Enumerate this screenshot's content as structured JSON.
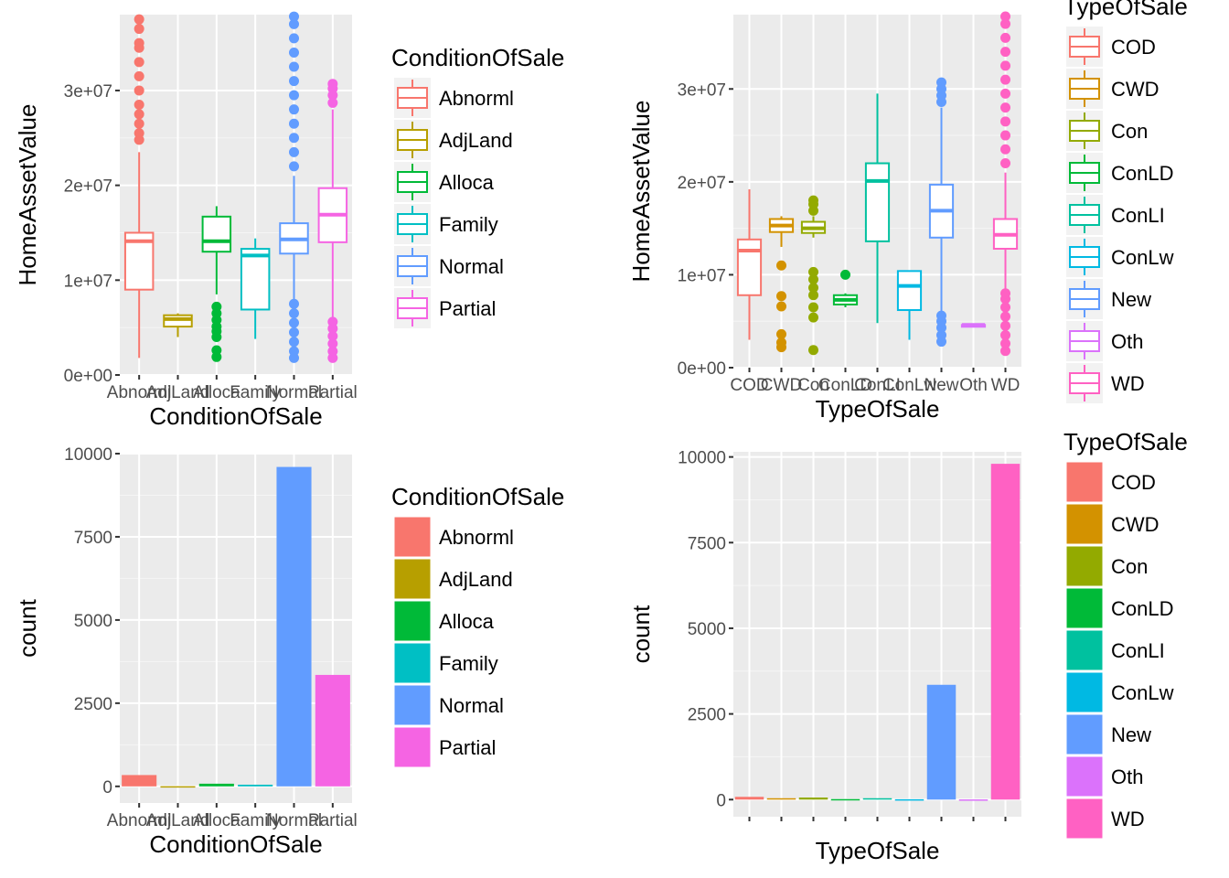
{
  "chart_data": [
    {
      "id": "p1",
      "type": "boxplot",
      "xlabel": "ConditionOfSale",
      "ylabel": "HomeAssetValue",
      "categories": [
        "Abnorml",
        "AdjLand",
        "Alloca",
        "Family",
        "Normal",
        "Partial"
      ],
      "ylim": [
        0,
        38000000
      ],
      "yticks": [
        0,
        10000000,
        20000000,
        30000000
      ],
      "ytick_labels": [
        "0e+00",
        "1e+07",
        "2e+07",
        "3e+07"
      ],
      "colors": [
        "#F8766D",
        "#B79F00",
        "#00BA38",
        "#00BFC4",
        "#619CFF",
        "#F564E3"
      ],
      "boxes": [
        {
          "lw": 1800000,
          "q1": 9000000,
          "med": 14100000,
          "q3": 15000000,
          "uw": 23500000,
          "outliers": [
            24800000,
            25500000,
            26500000,
            27500000,
            28500000,
            30000000,
            31500000,
            33000000,
            34500000,
            35000000,
            36500000,
            37500000
          ]
        },
        {
          "lw": 4000000,
          "q1": 5100000,
          "med": 5900000,
          "q3": 6300000,
          "uw": 6500000,
          "outliers": []
        },
        {
          "lw": 8500000,
          "q1": 13000000,
          "med": 14100000,
          "q3": 16700000,
          "uw": 17800000,
          "outliers": [
            1900000,
            2600000,
            4000000,
            4600000,
            5100000,
            5800000,
            6500000,
            7200000
          ]
        },
        {
          "lw": 3800000,
          "q1": 6900000,
          "med": 12600000,
          "q3": 13300000,
          "uw": 14400000,
          "outliers": []
        },
        {
          "lw": 8000000,
          "q1": 12800000,
          "med": 14300000,
          "q3": 16000000,
          "uw": 21000000,
          "outliers": [
            1800000,
            2500000,
            3500000,
            4500000,
            5500000,
            6500000,
            7500000,
            22000000,
            23500000,
            25000000,
            26500000,
            28000000,
            29500000,
            31000000,
            32500000,
            34000000,
            35500000,
            37000000,
            37800000
          ]
        },
        {
          "lw": 6000000,
          "q1": 14000000,
          "med": 16900000,
          "q3": 19700000,
          "uw": 28000000,
          "outliers": [
            1800000,
            2500000,
            3300000,
            4100000,
            4900000,
            5600000,
            28700000,
            29500000,
            30200000,
            30700000
          ]
        }
      ],
      "legend": {
        "title": "ConditionOfSale",
        "labels": [
          "Abnorml",
          "AdjLand",
          "Alloca",
          "Family",
          "Normal",
          "Partial"
        ]
      }
    },
    {
      "id": "p2",
      "type": "boxplot",
      "xlabel": "TypeOfSale",
      "ylabel": "HomeAssetValue",
      "categories": [
        "COD",
        "CWD",
        "Con",
        "ConLD",
        "ConLI",
        "ConLw",
        "New",
        "Oth",
        "WD"
      ],
      "ylim": [
        0,
        38000000
      ],
      "yticks": [
        0,
        10000000,
        20000000,
        30000000
      ],
      "ytick_labels": [
        "0e+00",
        "1e+07",
        "2e+07",
        "3e+07"
      ],
      "colors": [
        "#F8766D",
        "#D39200",
        "#93AA00",
        "#00BA38",
        "#00C19F",
        "#00B9E3",
        "#619CFF",
        "#DB72FB",
        "#FF61C3"
      ],
      "boxes": [
        {
          "lw": 3000000,
          "q1": 7800000,
          "med": 12600000,
          "q3": 13800000,
          "uw": 19200000,
          "outliers": []
        },
        {
          "lw": 13000000,
          "q1": 14600000,
          "med": 15300000,
          "q3": 16000000,
          "uw": 16300000,
          "outliers": [
            2200000,
            2700000,
            3600000,
            6600000,
            7700000,
            11000000
          ]
        },
        {
          "lw": 14000000,
          "q1": 14500000,
          "med": 15000000,
          "q3": 15700000,
          "uw": 16300000,
          "outliers": [
            1900000,
            5400000,
            6500000,
            7800000,
            8600000,
            9500000,
            10300000,
            16900000,
            17600000,
            18000000
          ]
        },
        {
          "lw": 6500000,
          "q1": 6800000,
          "med": 7300000,
          "q3": 7800000,
          "uw": 8000000,
          "outliers": [
            10000000
          ]
        },
        {
          "lw": 4800000,
          "q1": 13600000,
          "med": 20100000,
          "q3": 22000000,
          "uw": 29500000,
          "outliers": []
        },
        {
          "lw": 3000000,
          "q1": 6200000,
          "med": 8800000,
          "q3": 10400000,
          "uw": 10400000,
          "outliers": []
        },
        {
          "lw": 6000000,
          "q1": 14000000,
          "med": 16900000,
          "q3": 19700000,
          "uw": 28000000,
          "outliers": [
            2800000,
            3500000,
            4300000,
            5000000,
            5600000,
            28600000,
            29300000,
            30000000,
            30700000
          ]
        },
        {
          "lw": 4600000,
          "q1": 4600000,
          "med": 4600000,
          "q3": 4600000,
          "uw": 4600000,
          "outliers": []
        },
        {
          "lw": 8000000,
          "q1": 12800000,
          "med": 14300000,
          "q3": 16000000,
          "uw": 21000000,
          "outliers": [
            1800000,
            2600000,
            3500000,
            4500000,
            5500000,
            6500000,
            7400000,
            8000000,
            22000000,
            23500000,
            25000000,
            26500000,
            28000000,
            29500000,
            31000000,
            32500000,
            34000000,
            35500000,
            37000000,
            37800000
          ]
        }
      ],
      "legend": {
        "title": "TypeOfSale",
        "labels": [
          "COD",
          "CWD",
          "Con",
          "ConLD",
          "ConLI",
          "ConLw",
          "New",
          "Oth",
          "WD"
        ]
      }
    },
    {
      "id": "p3",
      "type": "bar",
      "xlabel": "ConditionOfSale",
      "ylabel": "count",
      "categories": [
        "Abnorml",
        "AdjLand",
        "Alloca",
        "Family",
        "Normal",
        "Partial"
      ],
      "values": [
        340,
        5,
        80,
        50,
        9600,
        3350
      ],
      "ylim": [
        -500,
        10000
      ],
      "yticks": [
        0,
        2500,
        5000,
        7500,
        10000
      ],
      "ytick_labels": [
        "0",
        "2500",
        "5000",
        "7500",
        "10000"
      ],
      "colors": [
        "#F8766D",
        "#B79F00",
        "#00BA38",
        "#00BFC4",
        "#619CFF",
        "#F564E3"
      ],
      "legend": {
        "title": "ConditionOfSale",
        "labels": [
          "Abnorml",
          "AdjLand",
          "Alloca",
          "Family",
          "Normal",
          "Partial"
        ]
      }
    },
    {
      "id": "p4",
      "type": "bar",
      "xlabel": "TypeOfSale",
      "ylabel": "count",
      "categories": [
        "COD",
        "CWD",
        "Con",
        "ConLD",
        "ConLI",
        "ConLw",
        "New",
        "Oth",
        "WD"
      ],
      "show_category_labels": false,
      "values": [
        80,
        40,
        60,
        15,
        40,
        10,
        3350,
        5,
        9800
      ],
      "ylim": [
        -500,
        10150
      ],
      "yticks": [
        0,
        2500,
        5000,
        7500,
        10000
      ],
      "ytick_labels": [
        "0",
        "2500",
        "5000",
        "7500",
        "10000"
      ],
      "colors": [
        "#F8766D",
        "#D39200",
        "#93AA00",
        "#00BA38",
        "#00C19F",
        "#00B9E3",
        "#619CFF",
        "#DB72FB",
        "#FF61C3"
      ],
      "legend": {
        "title": "TypeOfSale",
        "labels": [
          "COD",
          "CWD",
          "Con",
          "ConLD",
          "ConLI",
          "ConLw",
          "New",
          "Oth",
          "WD"
        ]
      }
    }
  ]
}
